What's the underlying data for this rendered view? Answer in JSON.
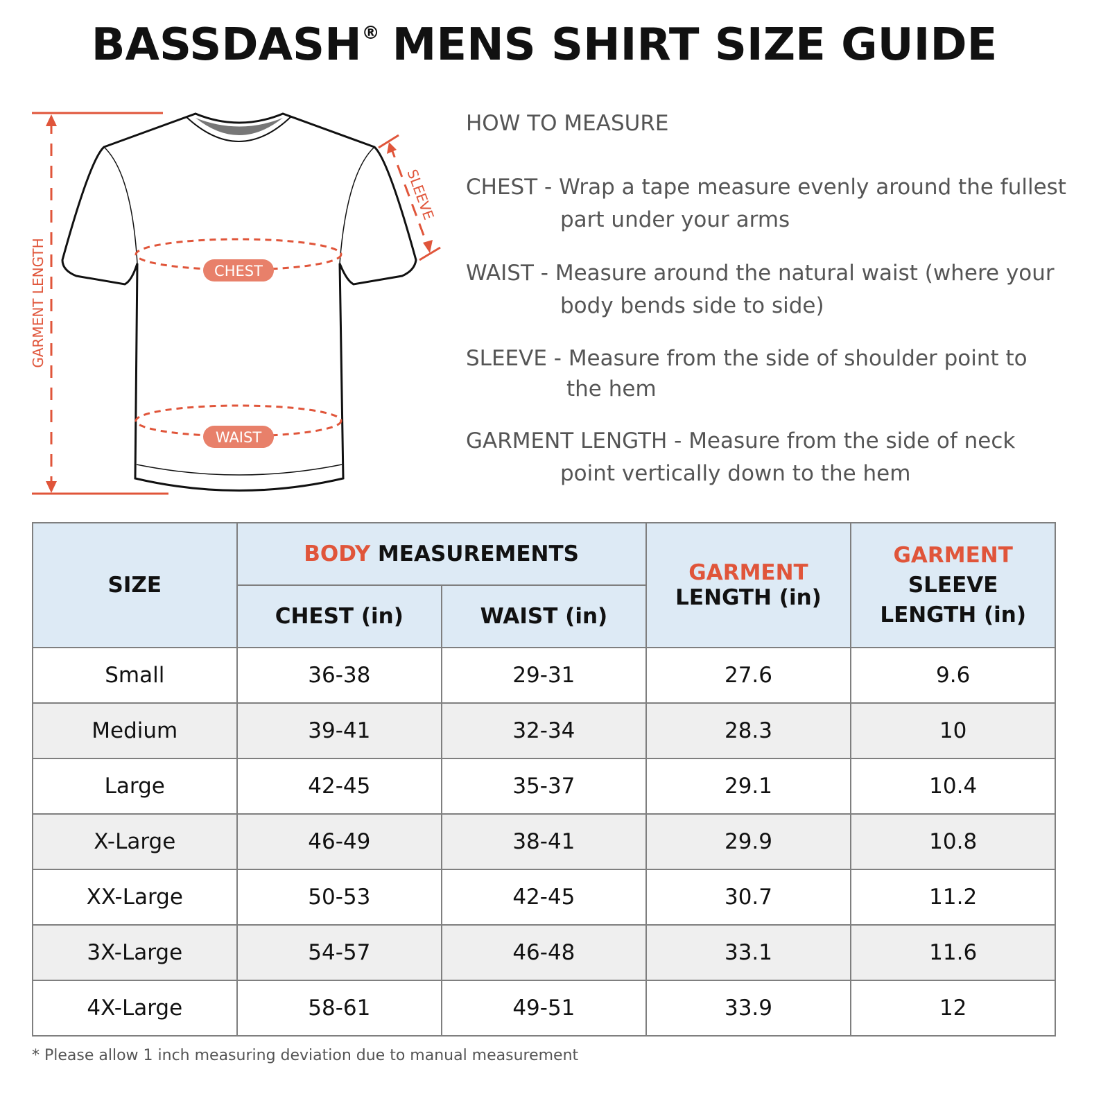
{
  "title": {
    "brand": "BASSDASH",
    "reg": "®",
    "rest": "MENS SHIRT SIZE GUIDE"
  },
  "diagram": {
    "garment_length": "GARMENT LENGTH",
    "sleeve": "SLEEVE",
    "chest": "CHEST",
    "waist": "WAIST",
    "accent": "#e0553a",
    "badge": "#e8806a"
  },
  "how_to": {
    "heading": "HOW TO MEASURE",
    "items": [
      {
        "term": "CHEST - ",
        "line1": "Wrap a tape measure evenly around the fullest",
        "line2": "part under your arms"
      },
      {
        "term": "WAIST - ",
        "line1": "Measure around the natural waist (where your",
        "line2": "body bends side to side)"
      },
      {
        "term": "SLEEVE - ",
        "line1": "Measure from the side of shoulder point to",
        "line2": "the hem"
      },
      {
        "term": "GARMENT LENGTH - ",
        "line1": "Measure from the side of neck",
        "line2": "point vertically down to the hem"
      }
    ]
  },
  "table": {
    "size": "SIZE",
    "body_red": "BODY",
    "body_rest": " MEASUREMENTS",
    "chest": "CHEST (in)",
    "waist": "WAIST (in)",
    "gl_red": "GARMENT",
    "gl_rest": "LENGTH (in)",
    "sl_red": "GARMENT",
    "sl_rest1": "SLEEVE",
    "sl_rest2": "LENGTH (in)",
    "rows": [
      [
        "Small",
        "36-38",
        "29-31",
        "27.6",
        "9.6"
      ],
      [
        "Medium",
        "39-41",
        "32-34",
        "28.3",
        "10"
      ],
      [
        "Large",
        "42-45",
        "35-37",
        "29.1",
        "10.4"
      ],
      [
        "X-Large",
        "46-49",
        "38-41",
        "29.9",
        "10.8"
      ],
      [
        "XX-Large",
        "50-53",
        "42-45",
        "30.7",
        "11.2"
      ],
      [
        "3X-Large",
        "54-57",
        "46-48",
        "33.1",
        "11.6"
      ],
      [
        "4X-Large",
        "58-61",
        "49-51",
        "33.9",
        "12"
      ]
    ]
  },
  "note": "* Please allow 1 inch measuring deviation due to manual measurement"
}
